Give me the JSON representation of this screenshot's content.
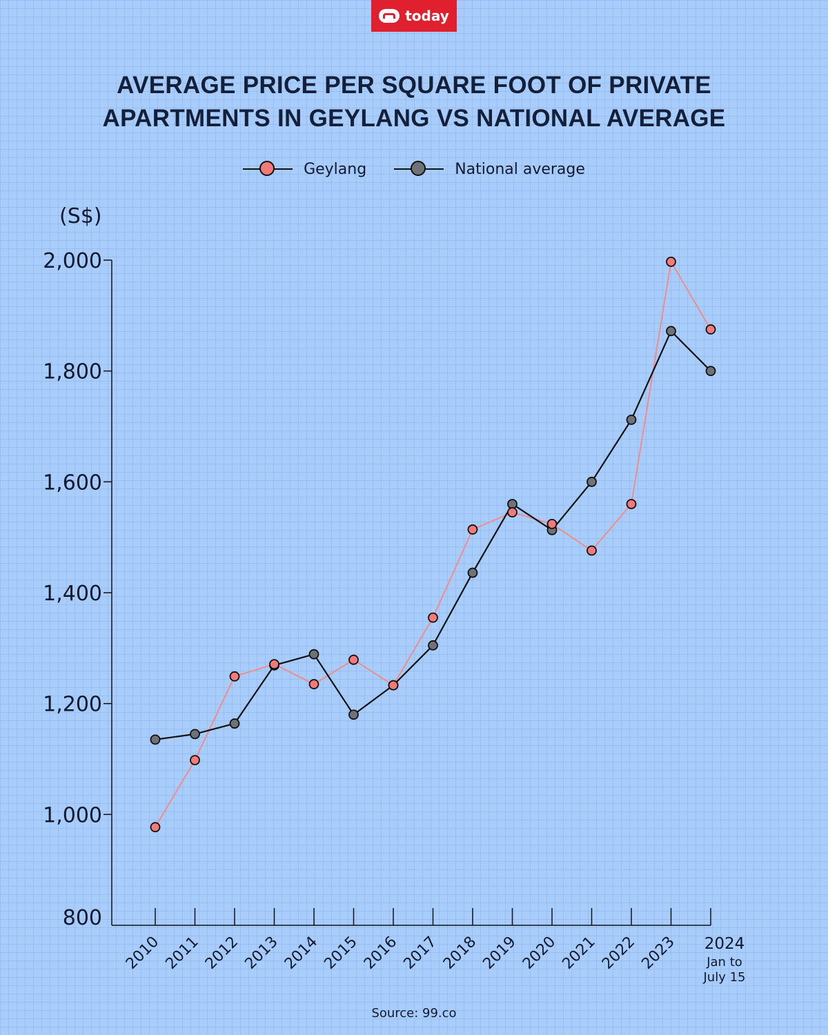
{
  "brand": {
    "logo_text": "today"
  },
  "title_lines": [
    "AVERAGE PRICE PER SQUARE FOOT OF PRIVATE",
    "APARTMENTS IN GEYLANG VS NATIONAL AVERAGE"
  ],
  "legend": [
    {
      "label": "Geylang",
      "color": "#f27a79"
    },
    {
      "label": "National average",
      "color": "#6f7277"
    }
  ],
  "source": "Source: 99.co",
  "chart_data": {
    "type": "line",
    "title": "AVERAGE PRICE PER SQUARE FOOT OF PRIVATE APARTMENTS IN GEYLANG VS NATIONAL AVERAGE",
    "ylabel": "(S$)",
    "xlabel": "",
    "ylim": [
      800,
      2000
    ],
    "yticks": [
      800,
      1000,
      1200,
      1400,
      1600,
      1800,
      2000
    ],
    "ytick_labels": [
      "800",
      "1,000",
      "1,200",
      "1,400",
      "1,600",
      "1,800",
      "2,000"
    ],
    "categories": [
      "2010",
      "2011",
      "2012",
      "2013",
      "2014",
      "2015",
      "2016",
      "2017",
      "2018",
      "2019",
      "2020",
      "2021",
      "2022",
      "2023",
      "2024"
    ],
    "last_category_note": [
      "Jan to",
      "July 15"
    ],
    "series": [
      {
        "name": "Geylang",
        "color": "#f27a79",
        "line_color": "#f08d8a",
        "values": [
          977,
          1098,
          1249,
          1271,
          1235,
          1279,
          1233,
          1355,
          1514,
          1545,
          1524,
          1476,
          1560,
          1997,
          1875
        ]
      },
      {
        "name": "National average",
        "color": "#6f7277",
        "line_color": "#111111",
        "values": [
          1135,
          1145,
          1164,
          1269,
          1289,
          1180,
          1233,
          1305,
          1436,
          1560,
          1513,
          1600,
          1712,
          1872,
          1800
        ]
      }
    ]
  }
}
